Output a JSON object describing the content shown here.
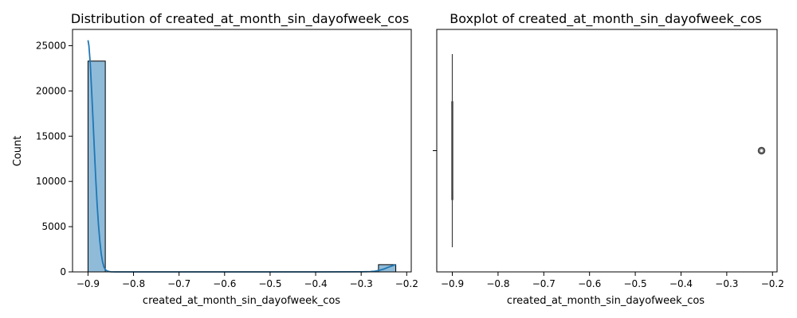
{
  "chart_data": [
    {
      "type": "bar",
      "subtype": "histogram_with_kde",
      "title": "Distribution of created_at_month_sin_dayofweek_cos",
      "xlabel": "created_at_month_sin_dayofweek_cos",
      "ylabel": "Count",
      "xlim": [
        -0.934,
        -0.19
      ],
      "ylim": [
        0,
        26800
      ],
      "x_ticks": [
        -0.9,
        -0.8,
        -0.7,
        -0.6,
        -0.5,
        -0.4,
        -0.3,
        -0.2
      ],
      "x_tick_labels": [
        "−0.9",
        "−0.8",
        "−0.7",
        "−0.6",
        "−0.5",
        "−0.4",
        "−0.3",
        "−0.2"
      ],
      "y_ticks": [
        0,
        5000,
        10000,
        15000,
        20000,
        25000
      ],
      "y_tick_labels": [
        "0",
        "5000",
        "10000",
        "15000",
        "20000",
        "25000"
      ],
      "bins": [
        {
          "x0": -0.9,
          "x1": -0.862,
          "count": 23300
        },
        {
          "x0": -0.862,
          "x1": -0.824,
          "count": 0
        },
        {
          "x0": -0.824,
          "x1": -0.786,
          "count": 0
        },
        {
          "x0": -0.786,
          "x1": -0.748,
          "count": 0
        },
        {
          "x0": -0.748,
          "x1": -0.71,
          "count": 0
        },
        {
          "x0": -0.71,
          "x1": -0.672,
          "count": 0
        },
        {
          "x0": -0.672,
          "x1": -0.634,
          "count": 0
        },
        {
          "x0": -0.634,
          "x1": -0.596,
          "count": 0
        },
        {
          "x0": -0.596,
          "x1": -0.558,
          "count": 0
        },
        {
          "x0": -0.558,
          "x1": -0.52,
          "count": 0
        },
        {
          "x0": -0.52,
          "x1": -0.482,
          "count": 0
        },
        {
          "x0": -0.482,
          "x1": -0.444,
          "count": 0
        },
        {
          "x0": -0.444,
          "x1": -0.406,
          "count": 0
        },
        {
          "x0": -0.406,
          "x1": -0.368,
          "count": 0
        },
        {
          "x0": -0.368,
          "x1": -0.33,
          "count": 0
        },
        {
          "x0": -0.33,
          "x1": -0.292,
          "count": 0
        },
        {
          "x0": -0.292,
          "x1": -0.262,
          "count": 0
        },
        {
          "x0": -0.262,
          "x1": -0.224,
          "count": 800
        }
      ],
      "kde": {
        "x": [
          -0.9,
          -0.898,
          -0.895,
          -0.892,
          -0.889,
          -0.886,
          -0.883,
          -0.88,
          -0.877,
          -0.874,
          -0.871,
          -0.868,
          -0.865,
          -0.862,
          -0.858,
          -0.854,
          -0.85,
          -0.84,
          -0.8,
          -0.7,
          -0.6,
          -0.5,
          -0.4,
          -0.3,
          -0.28,
          -0.27,
          -0.26,
          -0.25,
          -0.24,
          -0.23,
          -0.224
        ],
        "y": [
          25600,
          25000,
          23000,
          20000,
          16800,
          13500,
          10300,
          7500,
          5200,
          3400,
          2000,
          1100,
          550,
          250,
          100,
          40,
          10,
          0,
          0,
          0,
          0,
          0,
          0,
          10,
          30,
          80,
          180,
          320,
          520,
          700,
          800
        ]
      },
      "bar_color": "#1f77b4",
      "line_color": "#1f77b4"
    },
    {
      "type": "boxplot",
      "title": "Boxplot of created_at_month_sin_dayofweek_cos",
      "xlabel": "created_at_month_sin_dayofweek_cos",
      "ylabel": "",
      "xlim": [
        -0.934,
        -0.19
      ],
      "x_ticks": [
        -0.9,
        -0.8,
        -0.7,
        -0.6,
        -0.5,
        -0.4,
        -0.3,
        -0.2
      ],
      "x_tick_labels": [
        "−0.9",
        "−0.8",
        "−0.7",
        "−0.6",
        "−0.5",
        "−0.4",
        "−0.3",
        "−0.2"
      ],
      "box": {
        "min": -0.9,
        "q1": -0.9,
        "median": -0.9,
        "q3": -0.9,
        "max": -0.9
      },
      "outliers": [
        -0.224
      ],
      "line_color": "#3f3f3f"
    }
  ]
}
